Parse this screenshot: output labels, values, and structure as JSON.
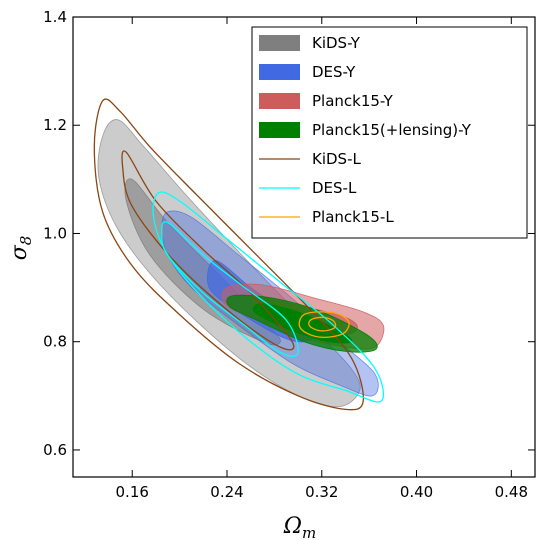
{
  "chart_data": {
    "type": "contour",
    "xlabel_main": "Ω",
    "xlabel_sub": "m",
    "ylabel_main": "σ",
    "ylabel_sub": "8",
    "xlim": [
      0.11,
      0.5
    ],
    "ylim": [
      0.55,
      1.4
    ],
    "xticks": [
      0.16,
      0.24,
      0.32,
      0.4,
      0.48
    ],
    "xtick_labels": [
      "0.16",
      "0.24",
      "0.32",
      "0.40",
      "0.48"
    ],
    "yticks": [
      0.6,
      0.8,
      1.0,
      1.2,
      1.4
    ],
    "ytick_labels": [
      "0.6",
      "0.8",
      "1.0",
      "1.2",
      "1.4"
    ],
    "legend_position": "top-right",
    "legend": [
      {
        "label": "KiDS-Y",
        "kind": "fill",
        "color": "#7f7f7f"
      },
      {
        "label": "DES-Y",
        "kind": "fill",
        "color": "#4169e1"
      },
      {
        "label": "Planck15-Y",
        "kind": "fill",
        "color": "#cd5c5c"
      },
      {
        "label": "Planck15(+lensing)-Y",
        "kind": "fill",
        "color": "#008000"
      },
      {
        "label": "KiDS-L",
        "kind": "line",
        "color": "#8b4513"
      },
      {
        "label": "DES-L",
        "kind": "line",
        "color": "#00ffff"
      },
      {
        "label": "Planck15-L",
        "kind": "line",
        "color": "#ffa500"
      }
    ],
    "series": [
      {
        "name": "KiDS-Y",
        "style": "fill",
        "color": "#7f7f7f",
        "contours": [
          {
            "level": "95%",
            "opacity": 0.4,
            "points": [
              [
                0.148,
                1.21
              ],
              [
                0.17,
                1.16
              ],
              [
                0.21,
                1.06
              ],
              [
                0.27,
                0.92
              ],
              [
                0.315,
                0.82
              ],
              [
                0.345,
                0.75
              ],
              [
                0.352,
                0.71
              ],
              [
                0.335,
                0.68
              ],
              [
                0.3,
                0.7
              ],
              [
                0.25,
                0.77
              ],
              [
                0.19,
                0.89
              ],
              [
                0.15,
                1.0
              ],
              [
                0.132,
                1.1
              ],
              [
                0.135,
                1.18
              ]
            ]
          },
          {
            "level": "68%",
            "opacity": 0.6,
            "points": [
              [
                0.16,
                1.1
              ],
              [
                0.19,
                1.02
              ],
              [
                0.235,
                0.92
              ],
              [
                0.275,
                0.83
              ],
              [
                0.285,
                0.8
              ],
              [
                0.27,
                0.8
              ],
              [
                0.22,
                0.86
              ],
              [
                0.175,
                0.96
              ],
              [
                0.155,
                1.06
              ]
            ]
          }
        ]
      },
      {
        "name": "DES-Y",
        "style": "fill",
        "color": "#4169e1",
        "contours": [
          {
            "level": "95%",
            "opacity": 0.4,
            "points": [
              [
                0.19,
                1.04
              ],
              [
                0.21,
                1.03
              ],
              [
                0.25,
                0.96
              ],
              [
                0.295,
                0.88
              ],
              [
                0.335,
                0.8
              ],
              [
                0.365,
                0.74
              ],
              [
                0.363,
                0.7
              ],
              [
                0.335,
                0.72
              ],
              [
                0.295,
                0.76
              ],
              [
                0.25,
                0.83
              ],
              [
                0.21,
                0.9
              ],
              [
                0.19,
                0.96
              ],
              [
                0.185,
                1.01
              ]
            ]
          },
          {
            "level": "68%",
            "opacity": 0.7,
            "points": [
              [
                0.23,
                0.95
              ],
              [
                0.26,
                0.9
              ],
              [
                0.29,
                0.855
              ],
              [
                0.315,
                0.82
              ],
              [
                0.305,
                0.8
              ],
              [
                0.285,
                0.81
              ],
              [
                0.25,
                0.855
              ],
              [
                0.225,
                0.9
              ]
            ]
          }
        ]
      },
      {
        "name": "Planck15-Y",
        "style": "fill",
        "color": "#cd5c5c",
        "contours": [
          {
            "level": "95%",
            "opacity": 0.55,
            "points": [
              [
                0.24,
                0.9
              ],
              [
                0.27,
                0.905
              ],
              [
                0.315,
                0.88
              ],
              [
                0.355,
                0.855
              ],
              [
                0.372,
                0.83
              ],
              [
                0.365,
                0.79
              ],
              [
                0.34,
                0.79
              ],
              [
                0.3,
                0.81
              ],
              [
                0.26,
                0.845
              ],
              [
                0.238,
                0.87
              ]
            ]
          },
          {
            "level": "68%",
            "opacity": 0.75,
            "points": [
              [
                0.27,
                0.88
              ],
              [
                0.305,
                0.865
              ],
              [
                0.34,
                0.845
              ],
              [
                0.35,
                0.825
              ],
              [
                0.335,
                0.81
              ],
              [
                0.3,
                0.82
              ],
              [
                0.27,
                0.85
              ],
              [
                0.262,
                0.87
              ]
            ]
          }
        ]
      },
      {
        "name": "Planck15(+lensing)-Y",
        "style": "fill",
        "color": "#008000",
        "contours": [
          {
            "level": "95%",
            "opacity": 0.75,
            "points": [
              [
                0.245,
                0.885
              ],
              [
                0.28,
                0.88
              ],
              [
                0.32,
                0.855
              ],
              [
                0.36,
                0.81
              ],
              [
                0.365,
                0.785
              ],
              [
                0.34,
                0.782
              ],
              [
                0.305,
                0.8
              ],
              [
                0.265,
                0.84
              ],
              [
                0.242,
                0.865
              ]
            ]
          },
          {
            "level": "68%",
            "opacity": 1.0,
            "points": [
              [
                0.27,
                0.87
              ],
              [
                0.3,
                0.855
              ],
              [
                0.335,
                0.82
              ],
              [
                0.345,
                0.8
              ],
              [
                0.325,
                0.8
              ],
              [
                0.295,
                0.82
              ],
              [
                0.27,
                0.845
              ],
              [
                0.262,
                0.86
              ]
            ]
          }
        ]
      },
      {
        "name": "KiDS-L",
        "style": "line",
        "color": "#8b4513",
        "contours": [
          {
            "level": "95%",
            "points": [
              [
                0.135,
                1.245
              ],
              [
                0.15,
                1.225
              ],
              [
                0.175,
                1.16
              ],
              [
                0.215,
                1.07
              ],
              [
                0.265,
                0.96
              ],
              [
                0.31,
                0.86
              ],
              [
                0.345,
                0.77
              ],
              [
                0.355,
                0.69
              ],
              [
                0.34,
                0.675
              ],
              [
                0.3,
                0.7
              ],
              [
                0.25,
                0.76
              ],
              [
                0.2,
                0.85
              ],
              [
                0.16,
                0.94
              ],
              [
                0.135,
                1.04
              ],
              [
                0.128,
                1.16
              ]
            ]
          },
          {
            "level": "68%",
            "points": [
              [
                0.155,
                1.15
              ],
              [
                0.18,
                1.06
              ],
              [
                0.22,
                0.97
              ],
              [
                0.26,
                0.89
              ],
              [
                0.295,
                0.8
              ],
              [
                0.285,
                0.79
              ],
              [
                0.245,
                0.85
              ],
              [
                0.195,
                0.95
              ],
              [
                0.16,
                1.05
              ],
              [
                0.152,
                1.12
              ]
            ]
          }
        ]
      },
      {
        "name": "DES-L",
        "style": "line",
        "color": "#00ffff",
        "contours": [
          {
            "level": "95%",
            "points": [
              [
                0.182,
                1.075
              ],
              [
                0.2,
                1.06
              ],
              [
                0.24,
                0.99
              ],
              [
                0.285,
                0.91
              ],
              [
                0.33,
                0.83
              ],
              [
                0.365,
                0.75
              ],
              [
                0.37,
                0.69
              ],
              [
                0.34,
                0.71
              ],
              [
                0.3,
                0.74
              ],
              [
                0.26,
                0.8
              ],
              [
                0.22,
                0.88
              ],
              [
                0.19,
                0.96
              ],
              [
                0.178,
                1.03
              ]
            ]
          },
          {
            "level": "68%",
            "points": [
              [
                0.19,
                1.02
              ],
              [
                0.22,
                0.96
              ],
              [
                0.255,
                0.9
              ],
              [
                0.29,
                0.84
              ],
              [
                0.3,
                0.78
              ],
              [
                0.285,
                0.78
              ],
              [
                0.255,
                0.83
              ],
              [
                0.22,
                0.89
              ],
              [
                0.19,
                0.96
              ],
              [
                0.185,
                1.0
              ]
            ]
          }
        ]
      },
      {
        "name": "Planck15-L",
        "style": "line",
        "color": "#ffa500",
        "contours": [
          {
            "level": "95%",
            "points": [
              [
                0.305,
                0.85
              ],
              [
                0.32,
                0.855
              ],
              [
                0.335,
                0.85
              ],
              [
                0.343,
                0.835
              ],
              [
                0.338,
                0.815
              ],
              [
                0.322,
                0.808
              ],
              [
                0.308,
                0.815
              ],
              [
                0.301,
                0.83
              ]
            ]
          },
          {
            "level": "68%",
            "points": [
              [
                0.312,
                0.842
              ],
              [
                0.322,
                0.845
              ],
              [
                0.33,
                0.838
              ],
              [
                0.331,
                0.826
              ],
              [
                0.322,
                0.82
              ],
              [
                0.313,
                0.824
              ],
              [
                0.309,
                0.833
              ]
            ]
          }
        ]
      }
    ]
  }
}
